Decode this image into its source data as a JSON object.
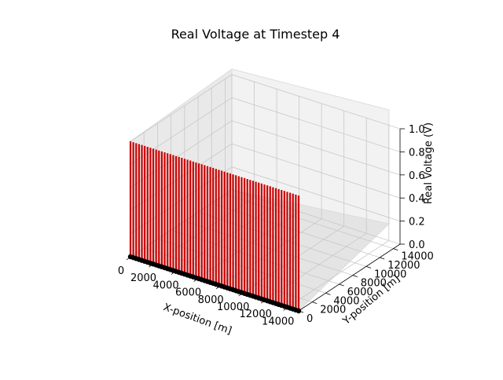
{
  "chart_data": {
    "type": "3d-stem",
    "title": "Real Voltage at Timestep 4",
    "xlabel": "X-position [m]",
    "ylabel": "Y-position [m]",
    "zlabel": "Real Voltage (V)",
    "xlim": [
      0,
      15000
    ],
    "ylim": [
      0,
      15000
    ],
    "zlim": [
      0,
      1.0
    ],
    "x_ticks": [
      "0",
      "2000",
      "4000",
      "6000",
      "8000",
      "10000",
      "12000",
      "14000"
    ],
    "y_ticks": [
      "0",
      "2000",
      "4000",
      "6000",
      "8000",
      "10000",
      "12000",
      "14000"
    ],
    "z_ticks": [
      "0.0",
      "0.2",
      "0.4",
      "0.6",
      "0.8",
      "1.0"
    ],
    "grid": true,
    "colors": {
      "stem": "#cc0000",
      "stem_edge": "#7a0000",
      "marker": "#000000"
    },
    "points": {
      "x_start": 0,
      "x_end": 15000,
      "count": 60,
      "y": 0,
      "z": 1.0
    }
  }
}
